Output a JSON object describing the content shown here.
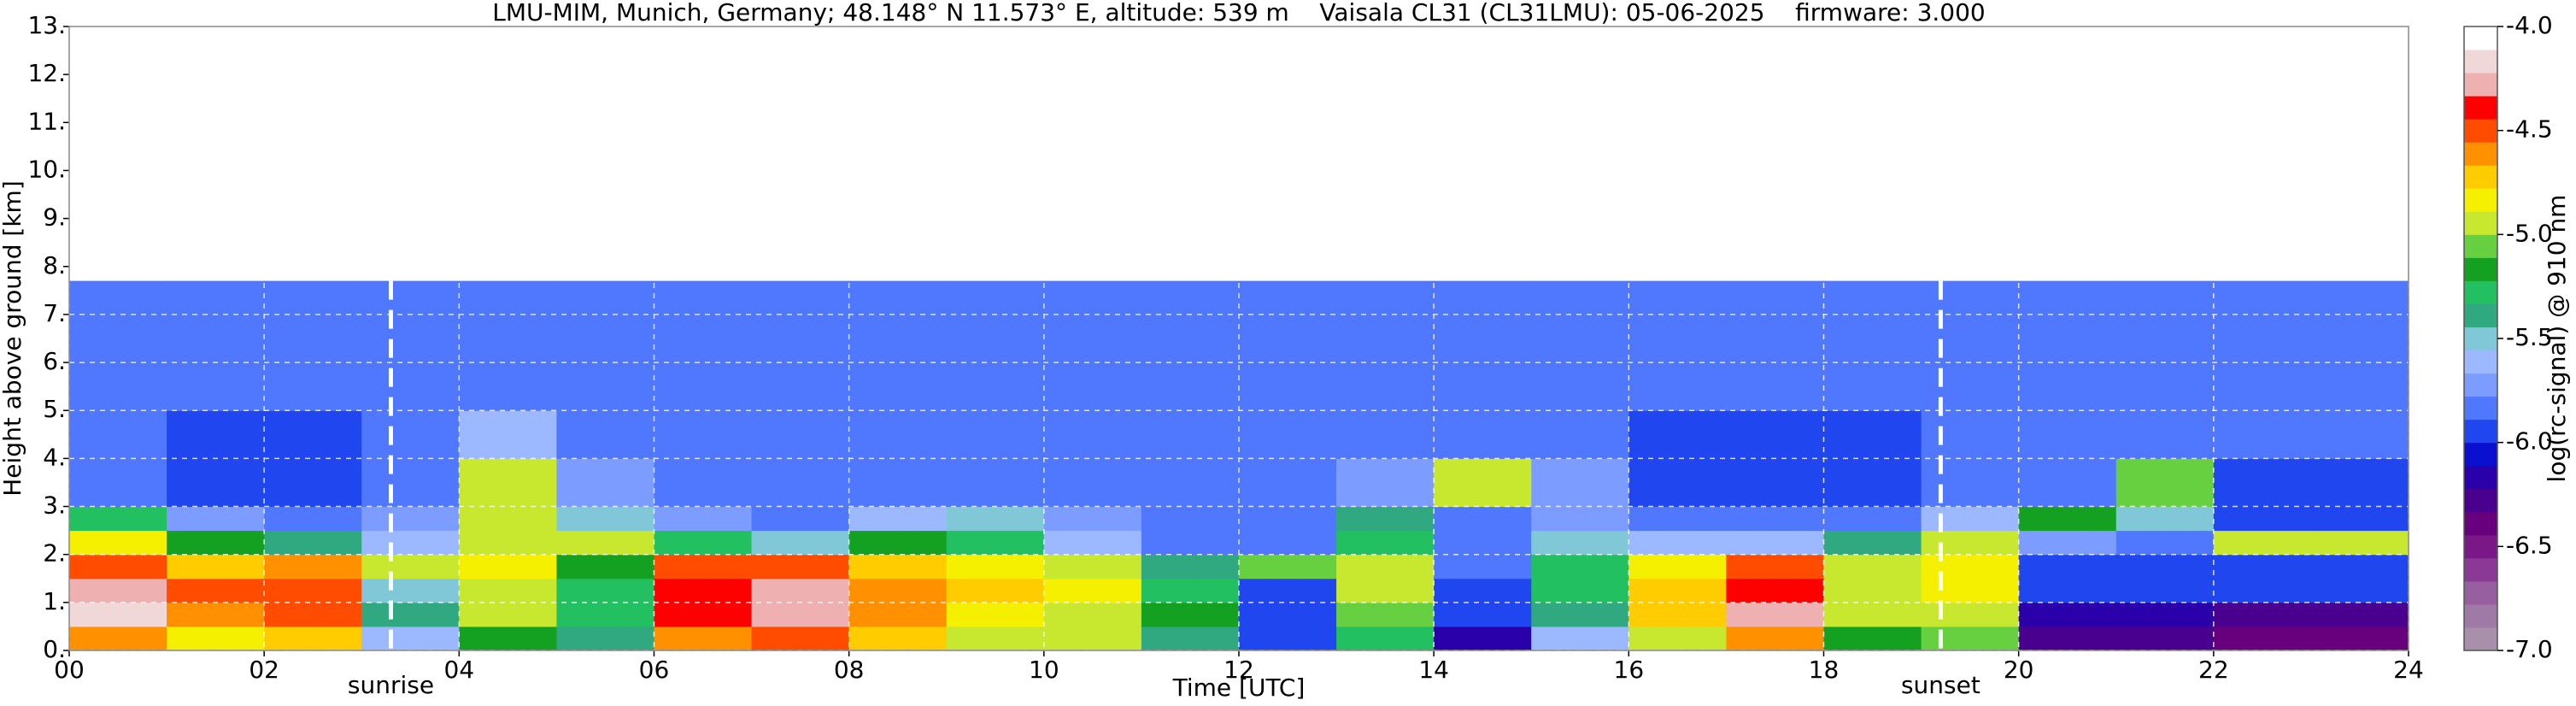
{
  "chart_data": {
    "type": "heatmap",
    "title": "LMU-MIM, Munich, Germany; 48.148° N 11.573° E, altitude: 539 m    Vaisala CL31 (CL31LMU): 05-06-2025    firmware: 3.000",
    "xlabel": "Time [UTC]",
    "ylabel": "Height above ground [km]",
    "xlim": [
      0,
      24
    ],
    "ylim": [
      0,
      13
    ],
    "xticks": [
      {
        "value": 0,
        "label": "00"
      },
      {
        "value": 2,
        "label": "02"
      },
      {
        "value": 4,
        "label": "04"
      },
      {
        "value": 6,
        "label": "06"
      },
      {
        "value": 8,
        "label": "08"
      },
      {
        "value": 10,
        "label": "10"
      },
      {
        "value": 12,
        "label": "12"
      },
      {
        "value": 14,
        "label": "14"
      },
      {
        "value": 16,
        "label": "16"
      },
      {
        "value": 18,
        "label": "18"
      },
      {
        "value": 20,
        "label": "20"
      },
      {
        "value": 22,
        "label": "22"
      },
      {
        "value": 24,
        "label": "24"
      }
    ],
    "yticks": [
      {
        "value": 0,
        "label": "0."
      },
      {
        "value": 1,
        "label": "1."
      },
      {
        "value": 2,
        "label": "2."
      },
      {
        "value": 3,
        "label": "3."
      },
      {
        "value": 4,
        "label": "4."
      },
      {
        "value": 5,
        "label": "5."
      },
      {
        "value": 6,
        "label": "6."
      },
      {
        "value": 7,
        "label": "7."
      },
      {
        "value": 8,
        "label": "8."
      },
      {
        "value": 9,
        "label": "9."
      },
      {
        "value": 10,
        "label": "10."
      },
      {
        "value": 11,
        "label": "11."
      },
      {
        "value": 12,
        "label": "12."
      },
      {
        "value": 13,
        "label": "13."
      }
    ],
    "grid": true,
    "x_bins": [
      0,
      1,
      2,
      3,
      4,
      5,
      6,
      7,
      8,
      9,
      10,
      11,
      12,
      13,
      14,
      15,
      16,
      17,
      18,
      19,
      20,
      21,
      22,
      23,
      24
    ],
    "y_bins": [
      0,
      0.5,
      1,
      1.5,
      2,
      2.5,
      3,
      4,
      5,
      7.7
    ],
    "z": [
      [
        -4.6,
        -4.8,
        -4.7,
        -5.6,
        -5.2,
        -5.4,
        -4.6,
        -4.5,
        -4.7,
        -4.9,
        -5.0,
        -5.4,
        -6.0,
        -5.3,
        -6.2,
        -5.6,
        -4.9,
        -4.6,
        -5.2,
        -5.1,
        -6.3,
        -6.3,
        -6.4,
        -6.4
      ],
      [
        -4.2,
        -4.6,
        -4.5,
        -5.4,
        -5.0,
        -5.3,
        -4.4,
        -4.3,
        -4.6,
        -4.8,
        -4.9,
        -5.2,
        -5.9,
        -5.1,
        -6.0,
        -5.4,
        -4.7,
        -4.3,
        -5.0,
        -4.9,
        -6.2,
        -6.2,
        -6.3,
        -6.3
      ],
      [
        -4.3,
        -4.5,
        -4.5,
        -5.5,
        -4.9,
        -5.3,
        -4.4,
        -4.3,
        -4.6,
        -4.7,
        -4.8,
        -5.3,
        -5.9,
        -5.0,
        -5.9,
        -5.3,
        -4.7,
        -4.4,
        -5.0,
        -4.8,
        -6.0,
        -6.0,
        -6.0,
        -6.0
      ],
      [
        -4.5,
        -4.7,
        -4.6,
        -4.9,
        -4.8,
        -5.2,
        -4.5,
        -4.5,
        -4.7,
        -4.8,
        -4.9,
        -5.4,
        -5.1,
        -5.0,
        -5.8,
        -5.3,
        -4.8,
        -4.5,
        -4.9,
        -4.8,
        -5.9,
        -5.9,
        -5.9,
        -5.9
      ],
      [
        -4.8,
        -5.2,
        -5.4,
        -5.6,
        -4.9,
        -5.0,
        -5.3,
        -5.5,
        -5.2,
        -5.3,
        -5.6,
        -5.8,
        -5.8,
        -5.3,
        -5.8,
        -5.5,
        -5.6,
        -5.6,
        -5.4,
        -5.0,
        -5.7,
        -5.8,
        -4.9,
        -4.9
      ],
      [
        -5.3,
        -5.7,
        -5.8,
        -5.7,
        -4.9,
        -5.5,
        -5.7,
        -5.8,
        -5.6,
        -5.5,
        -5.7,
        -5.8,
        -5.8,
        -5.4,
        -5.8,
        -5.7,
        -5.8,
        -5.8,
        -5.8,
        -5.6,
        -5.2,
        -5.5,
        -5.9,
        -5.9
      ],
      [
        -5.8,
        -5.9,
        -6.0,
        -5.8,
        -5.0,
        -5.7,
        -5.8,
        -5.8,
        -5.8,
        -5.8,
        -5.8,
        -5.8,
        -5.8,
        -5.7,
        -5.0,
        -5.7,
        -5.9,
        -6.0,
        -5.9,
        -5.8,
        -5.8,
        -5.1,
        -5.9,
        -5.9
      ],
      [
        -5.8,
        -5.9,
        -5.9,
        -5.8,
        -5.6,
        -5.8,
        -5.8,
        -5.8,
        -5.8,
        -5.8,
        -5.8,
        -5.8,
        -5.8,
        -5.8,
        -5.8,
        -5.8,
        -5.9,
        -5.9,
        -5.9,
        -5.8,
        -5.8,
        -5.8,
        -5.8,
        -5.8
      ],
      [
        -5.8,
        -5.8,
        -5.8,
        -5.8,
        -5.8,
        -5.8,
        -5.8,
        -5.8,
        -5.8,
        -5.8,
        -5.8,
        -5.8,
        -5.8,
        -5.8,
        -5.8,
        -5.8,
        -5.8,
        -5.8,
        -5.8,
        -5.8,
        -5.8,
        -5.8,
        -5.8,
        -5.8
      ]
    ],
    "annotations": [
      {
        "text": "sunrise",
        "x": 3.3
      },
      {
        "text": "sunset",
        "x": 19.2
      }
    ],
    "colorbar": {
      "label": "log(rc-signal) @ 910 nm",
      "lim": [
        -7,
        -4
      ],
      "ticks": [
        {
          "value": -7,
          "label": "-7.0"
        },
        -6.5,
        {
          "value": -6,
          "label": "-6.0"
        },
        -5.5,
        {
          "value": -5,
          "label": "-5.0"
        },
        -4.5,
        {
          "value": -4,
          "label": "-4.0"
        }
      ],
      "colors": [
        "#a890aa",
        "#a07aa6",
        "#985fa0",
        "#8a3a94",
        "#7a1888",
        "#68007e",
        "#4a008e",
        "#2a00aa",
        "#0a10d0",
        "#2046f0",
        "#5078ff",
        "#7c9cff",
        "#9cb8ff",
        "#80c8d8",
        "#30a880",
        "#22c060",
        "#14a020",
        "#66d040",
        "#c8e830",
        "#f4f000",
        "#ffcc00",
        "#ff9000",
        "#ff4c00",
        "#ff0000",
        "#eeb0b0",
        "#f0d8d8",
        "#ffffff"
      ]
    }
  }
}
